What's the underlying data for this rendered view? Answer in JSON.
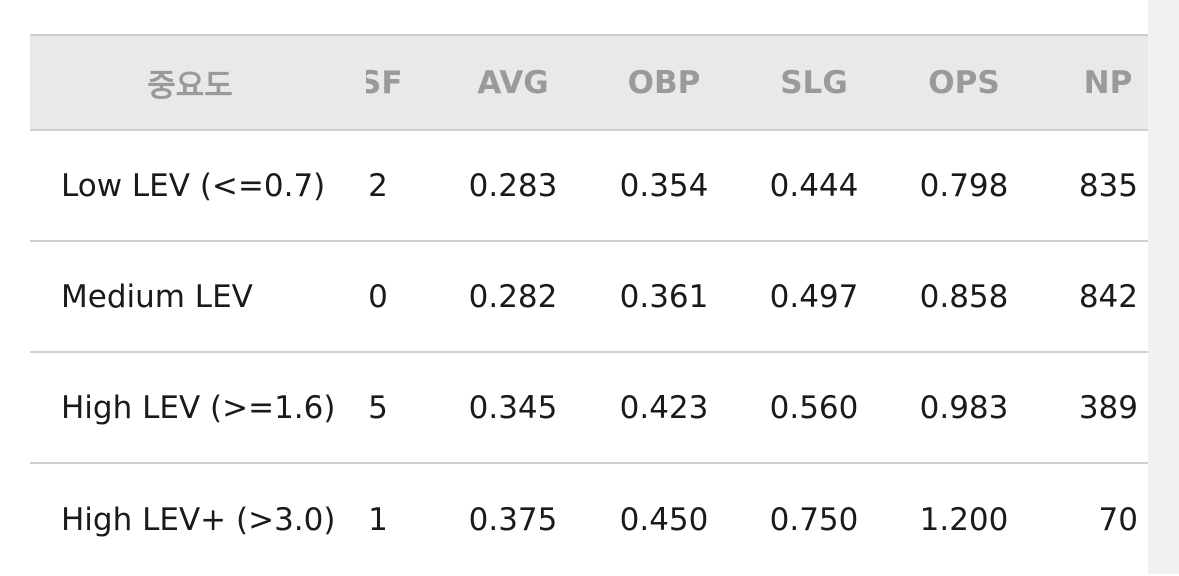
{
  "table": {
    "header": [
      "중요도",
      "SF",
      "AVG",
      "OBP",
      "SLG",
      "OPS",
      "NP"
    ],
    "rows": [
      [
        "Low LEV (<=0.7)",
        "2",
        "0.283",
        "0.354",
        "0.444",
        "0.798",
        "835"
      ],
      [
        "Medium LEV",
        "0",
        "0.282",
        "0.361",
        "0.497",
        "0.858",
        "842"
      ],
      [
        "High LEV (>=1.6)",
        "5",
        "0.345",
        "0.423",
        "0.560",
        "0.983",
        "389"
      ],
      [
        "High LEV+ (>3.0)",
        "1",
        "0.375",
        "0.450",
        "0.750",
        "1.200",
        "70"
      ]
    ]
  }
}
